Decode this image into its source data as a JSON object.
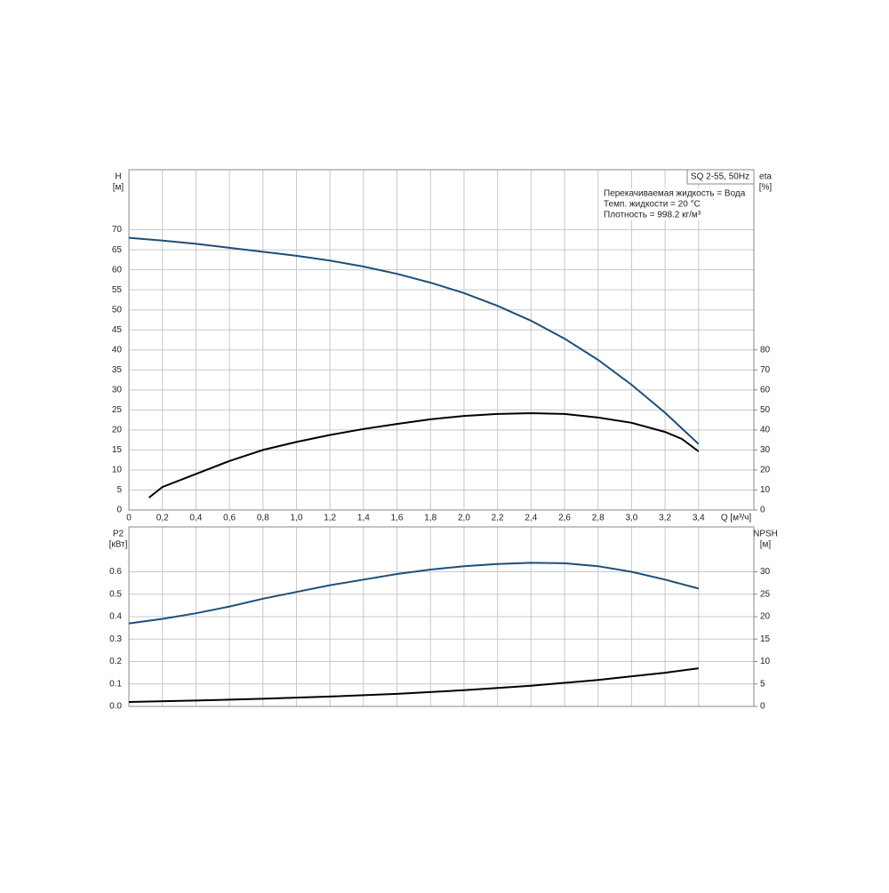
{
  "chart_data": [
    {
      "type": "line",
      "title": "SQ 2-55, 50Hz",
      "annotations": [
        "Перекачиваемая жидкость = Вода",
        "Темп. жидкости = 20 °C",
        "Плотность = 998.2 кг/м³"
      ],
      "xlabel": "Q [м³/ч]",
      "ylabel": [
        "H",
        "[м]"
      ],
      "y2label": [
        "eta",
        "[%]"
      ],
      "xlim": [
        0,
        3.73
      ],
      "ylim": [
        0,
        85
      ],
      "y2lim": [
        0,
        170
      ],
      "grid": true,
      "xticks": [
        0,
        {
          "value": 0.2,
          "label": "0,2"
        },
        {
          "value": 0.4,
          "label": "0,4"
        },
        {
          "value": 0.6,
          "label": "0,6"
        },
        {
          "value": 0.8,
          "label": "0,8"
        },
        {
          "value": 1.0,
          "label": "1,0"
        },
        {
          "value": 1.2,
          "label": "1,2"
        },
        {
          "value": 1.4,
          "label": "1,4"
        },
        {
          "value": 1.6,
          "label": "1,6"
        },
        {
          "value": 1.8,
          "label": "1,8"
        },
        {
          "value": 2.0,
          "label": "2,0"
        },
        {
          "value": 2.2,
          "label": "2,2"
        },
        {
          "value": 2.4,
          "label": "2,4"
        },
        {
          "value": 2.6,
          "label": "2,6"
        },
        {
          "value": 2.8,
          "label": "2,8"
        },
        {
          "value": 3.0,
          "label": "3,0"
        },
        {
          "value": 3.2,
          "label": "3,2"
        },
        {
          "value": 3.4,
          "label": "3,4"
        }
      ],
      "yticks": [
        0,
        5,
        10,
        15,
        20,
        25,
        30,
        35,
        40,
        45,
        50,
        55,
        60,
        65,
        70
      ],
      "y2ticks": [
        0,
        10,
        20,
        30,
        40,
        50,
        60,
        70,
        80
      ],
      "series": [
        {
          "color": "#1d4f7a",
          "x": [
            0,
            0.2,
            0.4,
            0.6,
            0.8,
            1.0,
            1.2,
            1.4,
            1.6,
            1.8,
            2.0,
            2.2,
            2.4,
            2.6,
            2.8,
            3.0,
            3.2,
            3.4
          ],
          "values": [
            68,
            67.3,
            66.5,
            65.5,
            64.5,
            63.5,
            62.3,
            60.8,
            59,
            56.8,
            54.2,
            51,
            47.3,
            42.8,
            37.5,
            31.3,
            24.3,
            16.5
          ]
        },
        {
          "color": "#000000",
          "axis": "y2",
          "x": [
            0.12,
            0.2,
            0.4,
            0.6,
            0.8,
            1.0,
            1.2,
            1.4,
            1.6,
            1.8,
            2.0,
            2.2,
            2.4,
            2.6,
            2.8,
            3.0,
            3.2,
            3.3,
            3.4
          ],
          "values": [
            6.2,
            11.5,
            18,
            24.5,
            30,
            34,
            37.5,
            40.5,
            43,
            45.3,
            47,
            48,
            48.4,
            48,
            46.2,
            43.6,
            39,
            35.5,
            29.3
          ]
        }
      ]
    },
    {
      "type": "line",
      "ylabel": [
        "P2",
        "[кВт]"
      ],
      "y2label": [
        "NPSH",
        "[м]"
      ],
      "xlim": [
        0,
        3.73
      ],
      "ylim": [
        0,
        0.8
      ],
      "y2lim": [
        0,
        40
      ],
      "grid": true,
      "yticks": [
        {
          "value": 0,
          "label": "0.0"
        },
        0.1,
        0.2,
        0.3,
        0.4,
        0.5,
        0.6
      ],
      "y2ticks": [
        0,
        5,
        10,
        15,
        20,
        25,
        30
      ],
      "series": [
        {
          "color": "#1d4f7a",
          "x": [
            0,
            0.2,
            0.4,
            0.6,
            0.8,
            1.0,
            1.2,
            1.4,
            1.6,
            1.8,
            2.0,
            2.2,
            2.4,
            2.6,
            2.8,
            3.0,
            3.2,
            3.4
          ],
          "values": [
            0.37,
            0.39,
            0.415,
            0.445,
            0.48,
            0.51,
            0.54,
            0.565,
            0.59,
            0.61,
            0.625,
            0.635,
            0.64,
            0.638,
            0.625,
            0.6,
            0.565,
            0.525
          ]
        },
        {
          "color": "#000000",
          "axis": "y2",
          "x": [
            0,
            0.4,
            0.8,
            1.2,
            1.6,
            2.0,
            2.4,
            2.8,
            3.2,
            3.4
          ],
          "values": [
            1.0,
            1.3,
            1.7,
            2.2,
            2.8,
            3.6,
            4.6,
            5.9,
            7.5,
            8.5
          ]
        }
      ]
    }
  ]
}
